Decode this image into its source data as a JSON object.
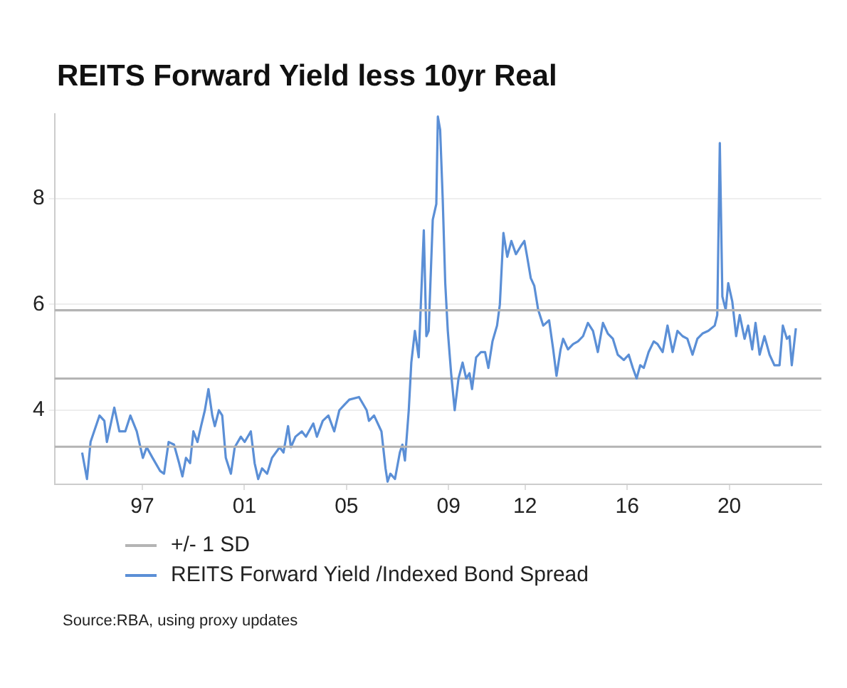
{
  "chart_data": {
    "type": "line",
    "title": "REITS Forward Yield less 10yr Real",
    "xlim": [
      1993.56,
      2023.61
    ],
    "xticks": [
      {
        "value": 1997,
        "label": "97"
      },
      {
        "value": 2001,
        "label": "01"
      },
      {
        "value": 2005,
        "label": "05"
      },
      {
        "value": 2009,
        "label": "09"
      },
      {
        "value": 2012,
        "label": "12"
      },
      {
        "value": 2016,
        "label": "16"
      },
      {
        "value": 2020,
        "label": "20"
      }
    ],
    "ylim": [
      2.6,
      9.6
    ],
    "yticks": [
      4,
      6,
      8
    ],
    "grid": "y",
    "legend": "bottom",
    "ref_lines": [
      {
        "axis": "y",
        "value": 4.6,
        "color": "#b4b4b4"
      }
    ],
    "series": [
      {
        "name": "+/- 1 SD",
        "color": "#b4b4b4",
        "x": [
          1993.56,
          2023.61
        ],
        "values": [
          5.89,
          5.89
        ]
      },
      {
        "color": "#b4b4b4",
        "x": [
          1993.56,
          2023.61
        ],
        "values": [
          3.31,
          3.31
        ]
      },
      {
        "name": "REITS Forward Yield /Indexed Bond Spread",
        "color": "#5b8fd6",
        "x": [
          1994.64,
          1994.83,
          1994.97,
          1995.32,
          1995.51,
          1995.61,
          1995.9,
          1996.1,
          1996.33,
          1996.53,
          1996.78,
          1997.02,
          1997.17,
          1997.4,
          1997.7,
          1997.85,
          1998.03,
          1998.24,
          1998.44,
          1998.57,
          1998.71,
          1998.87,
          1999.0,
          1999.16,
          1999.3,
          1999.45,
          1999.59,
          1999.74,
          1999.84,
          2000.0,
          2000.13,
          2000.27,
          2000.47,
          2000.62,
          2000.86,
          2001.01,
          2001.25,
          2001.4,
          2001.54,
          2001.69,
          2001.89,
          2002.08,
          2002.38,
          2002.53,
          2002.71,
          2002.82,
          2003.0,
          2003.25,
          2003.41,
          2003.7,
          2003.84,
          2004.07,
          2004.29,
          2004.52,
          2004.72,
          2004.91,
          2005.11,
          2005.49,
          2005.79,
          2005.88,
          2006.08,
          2006.37,
          2006.53,
          2006.61,
          2006.72,
          2006.9,
          2007.09,
          2007.19,
          2007.29,
          2007.44,
          2007.54,
          2007.68,
          2007.83,
          2008.03,
          2008.13,
          2008.22,
          2008.38,
          2008.52,
          2008.58,
          2008.67,
          2008.77,
          2008.87,
          2008.97,
          2009.1,
          2009.24,
          2009.39,
          2009.55,
          2009.69,
          2009.82,
          2009.92,
          2010.08,
          2010.27,
          2010.43,
          2010.56,
          2010.72,
          2010.9,
          2011.01,
          2011.15,
          2011.3,
          2011.46,
          2011.64,
          2011.83,
          2011.97,
          2012.08,
          2012.22,
          2012.36,
          2012.51,
          2012.71,
          2012.94,
          2013.1,
          2013.23,
          2013.39,
          2013.49,
          2013.68,
          2013.88,
          2014.07,
          2014.27,
          2014.46,
          2014.66,
          2014.85,
          2015.05,
          2015.24,
          2015.44,
          2015.63,
          2015.87,
          2016.06,
          2016.22,
          2016.37,
          2016.51,
          2016.65,
          2016.84,
          2017.04,
          2017.19,
          2017.39,
          2017.58,
          2017.78,
          2017.97,
          2018.17,
          2018.36,
          2018.56,
          2018.75,
          2018.95,
          2019.18,
          2019.43,
          2019.53,
          2019.63,
          2019.73,
          2019.86,
          2019.96,
          2020.12,
          2020.27,
          2020.41,
          2020.6,
          2020.74,
          2020.9,
          2021.03,
          2021.19,
          2021.38,
          2021.58,
          2021.77,
          2021.97,
          2022.1,
          2022.26,
          2022.36,
          2022.45,
          2022.61
        ],
        "values": [
          3.2,
          2.7,
          3.4,
          3.9,
          3.8,
          3.4,
          4.05,
          3.6,
          3.6,
          3.9,
          3.6,
          3.1,
          3.3,
          3.1,
          2.85,
          2.8,
          3.4,
          3.35,
          3.0,
          2.75,
          3.1,
          3.0,
          3.6,
          3.4,
          3.7,
          4.0,
          4.4,
          3.9,
          3.7,
          4.0,
          3.9,
          3.1,
          2.8,
          3.3,
          3.5,
          3.4,
          3.6,
          3.0,
          2.7,
          2.9,
          2.8,
          3.1,
          3.3,
          3.2,
          3.7,
          3.3,
          3.5,
          3.6,
          3.5,
          3.75,
          3.5,
          3.8,
          3.9,
          3.6,
          4.0,
          4.1,
          4.2,
          4.25,
          4.0,
          3.8,
          3.9,
          3.6,
          2.9,
          2.65,
          2.8,
          2.7,
          3.2,
          3.35,
          3.05,
          4.0,
          4.9,
          5.5,
          5.0,
          7.4,
          5.4,
          5.5,
          7.6,
          7.9,
          9.55,
          9.3,
          8.0,
          6.4,
          5.5,
          4.7,
          4.0,
          4.6,
          4.9,
          4.6,
          4.7,
          4.4,
          5.0,
          5.1,
          5.1,
          4.8,
          5.3,
          5.6,
          6.0,
          7.35,
          6.9,
          7.2,
          6.95,
          7.1,
          7.2,
          6.9,
          6.5,
          6.35,
          5.9,
          5.6,
          5.7,
          5.15,
          4.65,
          5.15,
          5.35,
          5.15,
          5.25,
          5.3,
          5.4,
          5.65,
          5.5,
          5.1,
          5.65,
          5.45,
          5.35,
          5.05,
          4.95,
          5.05,
          4.8,
          4.6,
          4.85,
          4.8,
          5.1,
          5.3,
          5.25,
          5.1,
          5.6,
          5.1,
          5.5,
          5.4,
          5.35,
          5.05,
          5.35,
          5.45,
          5.5,
          5.6,
          5.8,
          9.05,
          6.15,
          5.9,
          6.4,
          6.05,
          5.4,
          5.8,
          5.35,
          5.6,
          5.15,
          5.65,
          5.05,
          5.4,
          5.05,
          4.85,
          4.85,
          5.6,
          5.35,
          5.4,
          4.85,
          5.55
        ]
      }
    ],
    "annotations": [
      "Source:RBA, using proxy updates"
    ]
  }
}
